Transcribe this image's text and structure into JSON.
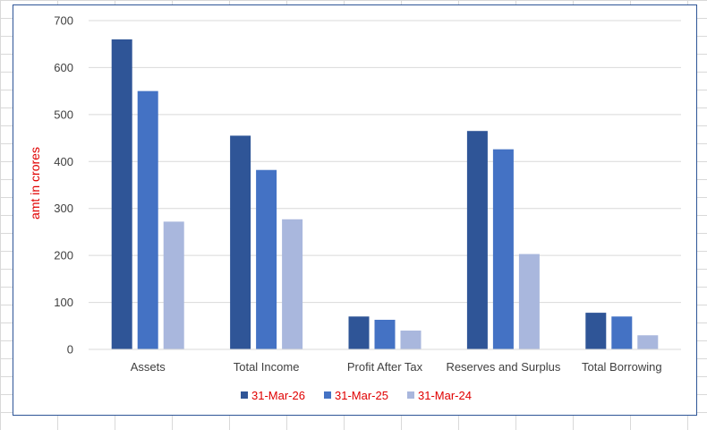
{
  "chart_data": {
    "type": "bar",
    "title": "",
    "xlabel": "",
    "ylabel": "amt in crores",
    "categories": [
      "Assets",
      "Total Income",
      "Profit After Tax",
      "Reserves and Surplus",
      "Total Borrowing"
    ],
    "series": [
      {
        "name": "31-Mar-26",
        "values": [
          660,
          455,
          70,
          465,
          78
        ],
        "color": "#2f5597"
      },
      {
        "name": "31-Mar-25",
        "values": [
          550,
          382,
          63,
          426,
          70
        ],
        "color": "#4472c4"
      },
      {
        "name": "31-Mar-24",
        "values": [
          272,
          277,
          40,
          203,
          30
        ],
        "color": "#a9b7dd"
      }
    ],
    "ylim": [
      0,
      700
    ],
    "yticks": [
      0,
      100,
      200,
      300,
      400,
      500,
      600,
      700
    ],
    "grid": true,
    "legend_position": "bottom"
  }
}
